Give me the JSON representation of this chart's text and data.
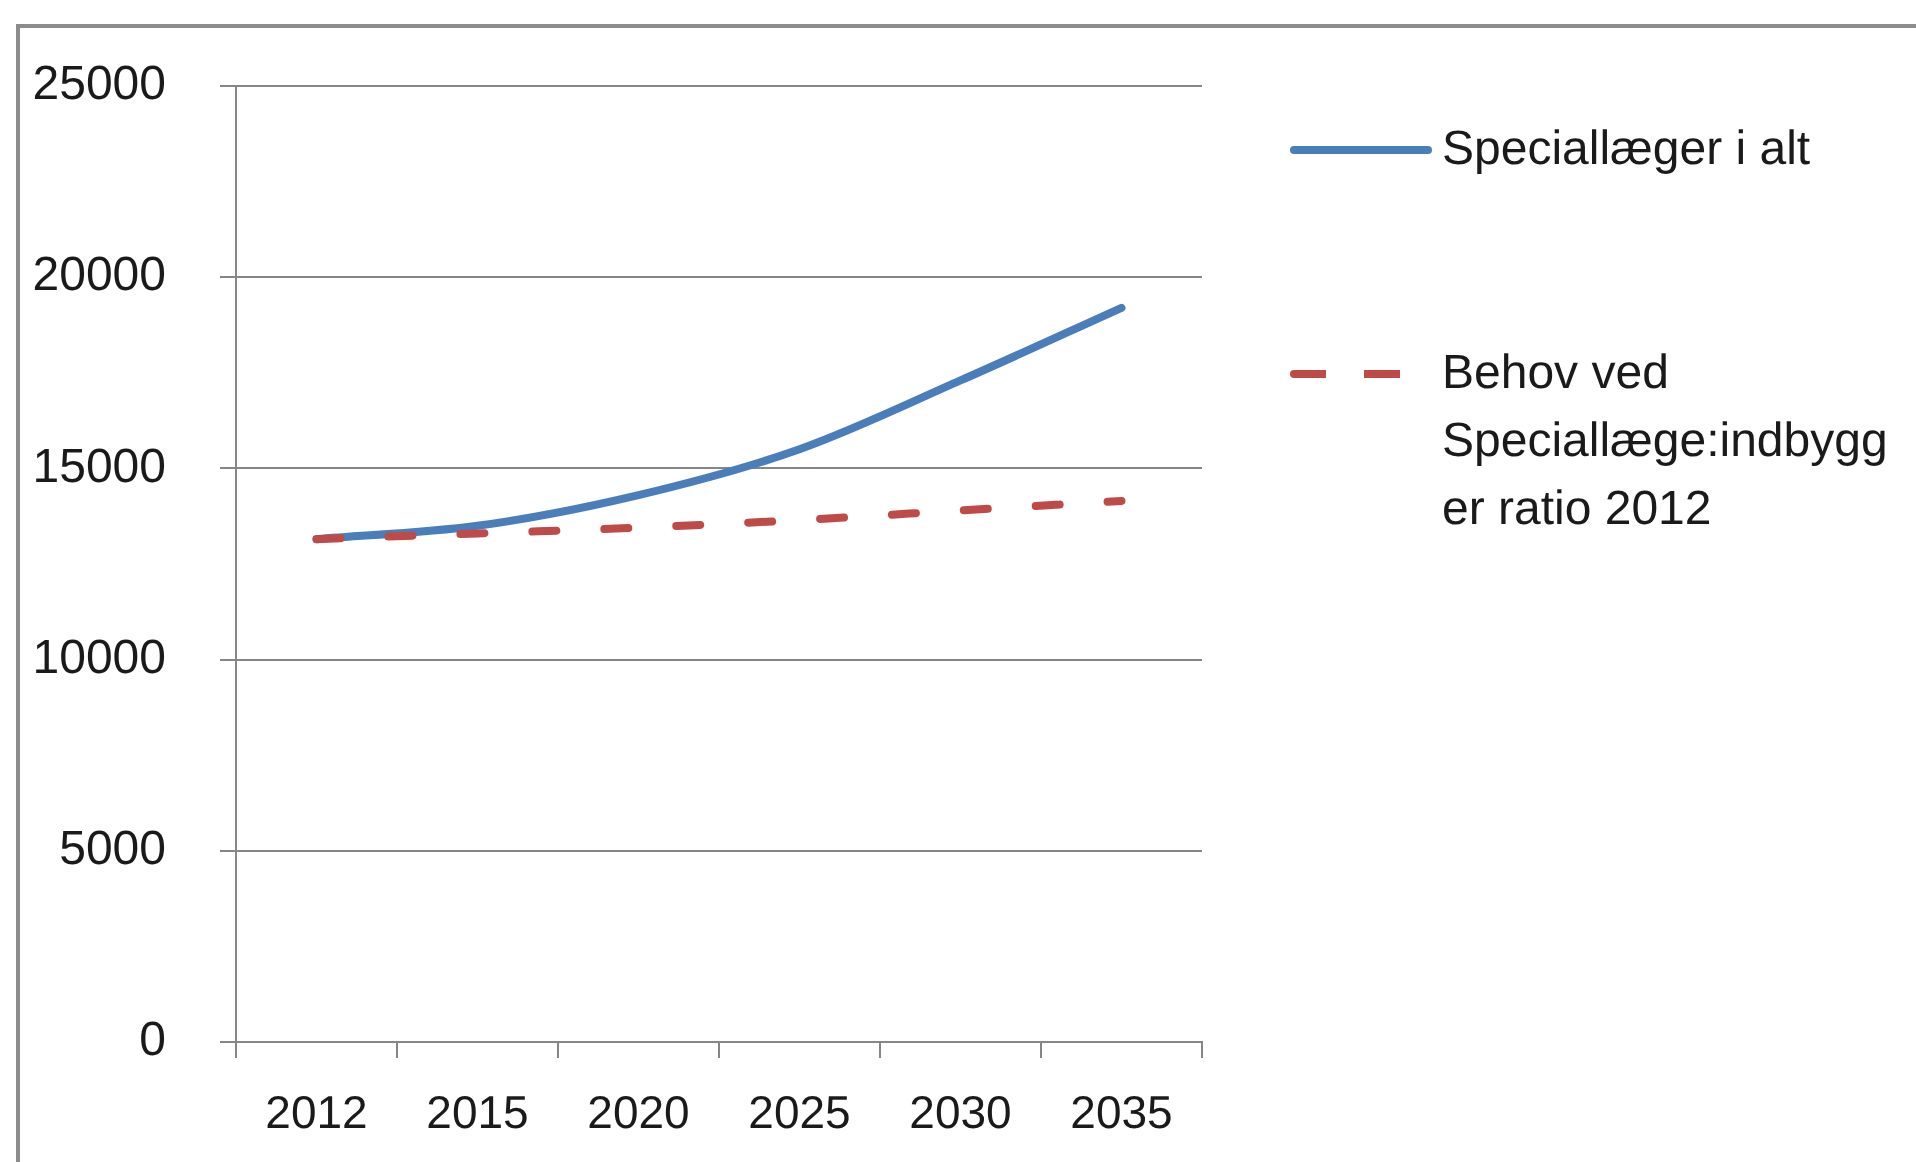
{
  "chart_data": {
    "type": "line",
    "categories": [
      "2012",
      "2015",
      "2020",
      "2025",
      "2030",
      "2035"
    ],
    "series": [
      {
        "name": "Speciallæger i alt",
        "color": "#4a7ebb",
        "line_style": "solid",
        "values": [
          13150,
          13500,
          14300,
          15500,
          17300,
          19200
        ]
      },
      {
        "name": "Behov ved Speciallæge:indbygger ratio 2012",
        "color": "#be4b48",
        "line_style": "dashed",
        "values": [
          13150,
          13300,
          13450,
          13650,
          13900,
          14150
        ]
      }
    ],
    "ylim": [
      0,
      25000
    ],
    "yticks": [
      0,
      5000,
      10000,
      15000,
      20000,
      25000
    ],
    "grid": "y",
    "legend": "right",
    "marker": "none"
  }
}
